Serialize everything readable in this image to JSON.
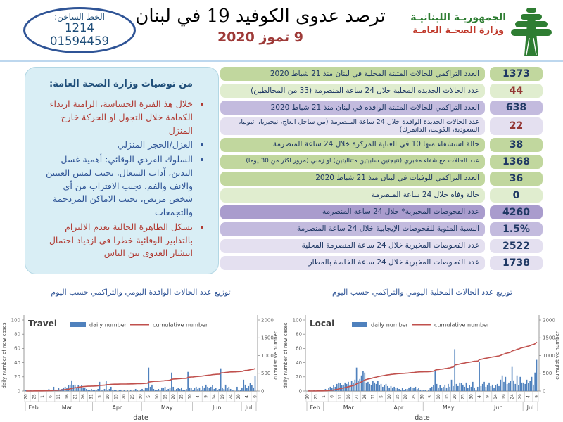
{
  "header": {
    "hotline": {
      "label": "الخط الساخن:",
      "short_number": "1214",
      "long_number": "01594459"
    },
    "title": "ترصد عدوى الكوفيد 19 في لبنان",
    "date": "9 تموز 2020",
    "ministry": {
      "line1": "الجمهوريـة اللبنانيـة",
      "line2": "وزارة الصحـة العامـة"
    }
  },
  "recommendations": {
    "title": "من توصيات وزارة الصحة العامة:",
    "items": [
      {
        "text": "خلال هذ الفترة الحساسة، الزامية ارتداء الكمامة خلال التجول او الحركة خارج المنزل",
        "color": "red"
      },
      {
        "text": "العزل/الحجر المنزلي",
        "color": "blue"
      },
      {
        "text": "السلوك الفردي الوقائي: أهمية غسل اليدين، آداب السعال، تجنب لمس العينين والانف والفم، تجنب الاقتراب من أي شخص مريض، تجنب الاماكن المزدحمة والتجمعات",
        "color": "blue"
      },
      {
        "text": "تشكل الظاهرة الحالية بعدم الالتزام بالتدابير الوقائية خطرا في ازدياد احتمال انتشار العدوى بين الناس",
        "color": "red"
      }
    ]
  },
  "stats": [
    {
      "label": "العدد التراكمي للحالات المثبتة المحلية في لبنان منذ 21 شباط 2020",
      "value": "1373",
      "theme": "gd",
      "value_color": "blue"
    },
    {
      "label": "عدد الحالات الجديدة المحلية خلال 24 ساعة المنصرمة  (33 من المخالطين)",
      "value": "44",
      "theme": "gl",
      "value_color": "red"
    },
    {
      "label": "العدد التراكمي للحالات المثبتة الوافدة في لبنان منذ 21 شباط 2020",
      "value": "638",
      "theme": "pm",
      "value_color": "blue"
    },
    {
      "label": "عدد الحالات الجديدة  الوافدة خلال 24 ساعة المنصرمة (من ساحل العاج، نيجيريا، اثيوبيا، السعودية، الكويت، الدانمرك)",
      "value": "22",
      "theme": "pl",
      "value_color": "red"
    },
    {
      "label": "حالة استشفاء منها  10 في العناية المركزة خلال 24 ساعة المنصرمة",
      "value": "38",
      "theme": "gd",
      "value_color": "blue"
    },
    {
      "label": "عدد الحالات مع شفاء مخبري (نتيجتين سلبيتين متتاليتين) او زمني (مرور اكثر من 30 يوما)",
      "value": "1368",
      "theme": "gd",
      "value_color": "blue"
    },
    {
      "label": "العدد التراكمي للوفيات في لبنان منذ 21 شباط  2020",
      "value": "36",
      "theme": "gd",
      "value_color": "blue"
    },
    {
      "label": "حالة وفاة خلال 24 ساعة المنصرمة",
      "value": "0",
      "theme": "gl",
      "value_color": "blue"
    },
    {
      "label": "عدد الفحوصات المخبرية* خلال 24 ساعة المنصرمة",
      "value": "4260",
      "theme": "pd",
      "value_color": "blue"
    },
    {
      "label": "النسبة المئوية للفحوصات الإيجابية خلال 24 ساعة المنصرمة",
      "value": "1.5%",
      "theme": "pm",
      "value_color": "blue"
    },
    {
      "label": "عدد الفحوصات المخبرية خلال 24 ساعة المنصرمة المحلية",
      "value": "2522",
      "theme": "pl",
      "value_color": "blue"
    },
    {
      "label": "عدد الفحوصات المخبرية خلال 24 ساعة الخاصة بالمطار",
      "value": "1738",
      "theme": "pl",
      "value_color": "blue"
    }
  ],
  "charts_section": {
    "left_title": "توزيع عدد الحالات الوافدة اليومي والتراكمي حسب اليوم",
    "right_title": "توزيع عدد الحالات المحلية اليومي والتراكمي حسب اليوم"
  },
  "chart_data": [
    {
      "type": "bar",
      "title": "Travel",
      "legend": [
        "daily number",
        "cumulative number"
      ],
      "xlabel": "date",
      "ylabel_left": "daily number of new cases",
      "ylabel_right": "cumulative number",
      "ylim_left": [
        0,
        100
      ],
      "ylim_right": [
        0,
        2000
      ],
      "bar_color": "#4f81bd",
      "line_color": "#c0504d",
      "months": [
        {
          "name": "Feb",
          "days": 10
        },
        {
          "name": "Mar",
          "days": 31
        },
        {
          "name": "Apr",
          "days": 30
        },
        {
          "name": "May",
          "days": 31
        },
        {
          "name": "Jun",
          "days": 30
        },
        {
          "name": "Jul",
          "days": 9
        }
      ],
      "tick_labels": [
        "20",
        "25",
        "1",
        "6",
        "11",
        "16",
        "21",
        "26",
        "31",
        "5",
        "10",
        "15",
        "20",
        "25",
        "30",
        "5",
        "10",
        "15",
        "20",
        "25",
        "30",
        "4",
        "9",
        "14",
        "19",
        "24",
        "29",
        "4",
        "9"
      ],
      "daily": [
        1,
        0,
        0,
        1,
        0,
        1,
        0,
        0,
        1,
        0,
        0,
        2,
        1,
        0,
        3,
        1,
        2,
        6,
        2,
        1,
        4,
        2,
        3,
        5,
        6,
        4,
        8,
        9,
        15,
        8,
        9,
        5,
        8,
        6,
        8,
        5,
        4,
        3,
        2,
        1,
        3,
        1,
        2,
        2,
        3,
        13,
        2,
        1,
        3,
        14,
        1,
        3,
        6,
        1,
        2,
        1,
        0,
        1,
        2,
        0,
        1,
        0,
        1,
        0,
        2,
        0,
        1,
        3,
        1,
        0,
        2,
        3,
        1,
        5,
        4,
        33,
        6,
        9,
        3,
        2,
        1,
        3,
        2,
        5,
        4,
        6,
        2,
        3,
        5,
        26,
        6,
        2,
        3,
        4,
        3,
        5,
        2,
        1,
        3,
        27,
        5,
        4,
        2,
        4,
        6,
        3,
        5,
        2,
        7,
        5,
        9,
        6,
        4,
        6,
        8,
        3,
        4,
        2,
        3,
        32,
        5,
        3,
        9,
        4,
        6,
        3,
        1,
        2,
        0,
        6,
        2,
        1,
        5,
        16,
        9,
        4,
        7,
        11,
        8,
        5,
        21
      ],
      "cumulative_final": 638
    },
    {
      "type": "bar",
      "title": "Local",
      "legend": [
        "daily number",
        "cumulative number"
      ],
      "xlabel": "date",
      "ylabel_left": "daily number of new cases",
      "ylabel_right": "cumulative number",
      "ylim_left": [
        0,
        100
      ],
      "ylim_right": [
        0,
        2000
      ],
      "bar_color": "#4f81bd",
      "line_color": "#c0504d",
      "months": [
        {
          "name": "Feb",
          "days": 10
        },
        {
          "name": "Mar",
          "days": 31
        },
        {
          "name": "Apr",
          "days": 30
        },
        {
          "name": "May",
          "days": 31
        },
        {
          "name": "Jun",
          "days": 30
        },
        {
          "name": "Jul",
          "days": 9
        }
      ],
      "tick_labels": [
        "20",
        "25",
        "1",
        "6",
        "11",
        "16",
        "21",
        "26",
        "31",
        "5",
        "10",
        "15",
        "20",
        "25",
        "30",
        "5",
        "10",
        "15",
        "20",
        "25",
        "30",
        "4",
        "9",
        "14",
        "19",
        "24",
        "29",
        "4",
        "9"
      ],
      "daily": [
        0,
        1,
        0,
        0,
        1,
        0,
        1,
        0,
        1,
        0,
        1,
        3,
        2,
        4,
        6,
        4,
        8,
        6,
        10,
        12,
        11,
        8,
        9,
        12,
        10,
        13,
        9,
        14,
        12,
        16,
        33,
        15,
        17,
        22,
        28,
        26,
        12,
        13,
        10,
        8,
        14,
        12,
        10,
        14,
        8,
        10,
        6,
        8,
        10,
        7,
        5,
        7,
        5,
        6,
        4,
        5,
        3,
        2,
        4,
        1,
        3,
        3,
        5,
        6,
        4,
        5,
        6,
        3,
        4,
        2,
        1,
        1,
        1,
        0,
        2,
        4,
        6,
        8,
        28,
        10,
        5,
        8,
        4,
        6,
        9,
        5,
        10,
        6,
        16,
        7,
        59,
        10,
        7,
        12,
        11,
        9,
        6,
        12,
        4,
        8,
        6,
        13,
        5,
        2,
        6,
        41,
        7,
        10,
        13,
        6,
        9,
        12,
        7,
        9,
        5,
        8,
        10,
        7,
        16,
        22,
        13,
        20,
        10,
        12,
        14,
        34,
        15,
        10,
        22,
        8,
        20,
        12,
        12,
        10,
        16,
        11,
        14,
        20,
        9,
        26,
        44
      ],
      "cumulative_final": 1373
    }
  ]
}
